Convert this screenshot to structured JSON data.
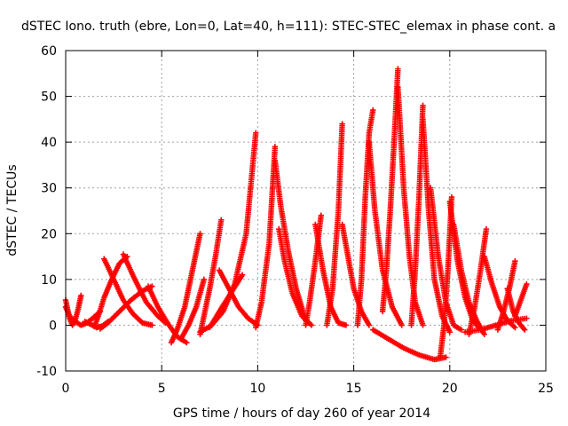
{
  "chart_data": {
    "type": "scatter",
    "title": "dSTEC Iono. truth (ebre, Lon=0, Lat=40, h=111): STEC-STEC_elemax in phase cont. a",
    "xlabel": "GPS time / hours of day 260 of year 2014",
    "ylabel": "dSTEC  / TECUs",
    "xlim": [
      0,
      25
    ],
    "ylim": [
      -10,
      60
    ],
    "xticks": [
      0,
      5,
      10,
      15,
      20,
      25
    ],
    "yticks": [
      -10,
      0,
      10,
      20,
      30,
      40,
      50,
      60
    ],
    "grid": true,
    "marker": "+",
    "color": "#ff0000",
    "series": [
      {
        "x": [
          0.0,
          0.1,
          0.2,
          0.35,
          0.5,
          0.65,
          0.8
        ],
        "y": [
          5.5,
          3.5,
          1.5,
          0.0,
          1.2,
          3.5,
          6.5
        ]
      },
      {
        "x": [
          0.0,
          0.2,
          0.5,
          0.8,
          1.1,
          1.4,
          1.8
        ],
        "y": [
          4.0,
          2.0,
          0.8,
          0.0,
          0.5,
          1.5,
          3.0
        ]
      },
      {
        "x": [
          1.0,
          1.3,
          1.6,
          1.9,
          2.2
        ],
        "y": [
          0.8,
          0.2,
          -0.5,
          -0.2,
          0.8
        ]
      },
      {
        "x": [
          1.5,
          1.7,
          2.0,
          2.4,
          2.8,
          3.2
        ],
        "y": [
          -0.3,
          2.0,
          6.0,
          10.0,
          13.5,
          15.0
        ]
      },
      {
        "x": [
          2.0,
          2.5,
          3.0,
          3.5,
          4.0,
          4.5
        ],
        "y": [
          14.5,
          10.0,
          5.5,
          2.5,
          0.5,
          0.0
        ]
      },
      {
        "x": [
          1.8,
          2.2,
          2.8,
          3.4,
          4.0,
          4.5
        ],
        "y": [
          -0.8,
          0.5,
          3.0,
          5.5,
          7.5,
          8.5
        ]
      },
      {
        "x": [
          3.0,
          3.6,
          4.2,
          4.8,
          5.2
        ],
        "y": [
          15.5,
          10.0,
          5.0,
          2.0,
          0.5
        ]
      },
      {
        "x": [
          4.3,
          4.8,
          5.3,
          5.8,
          6.3
        ],
        "y": [
          8.5,
          4.0,
          0.5,
          -2.5,
          -3.8
        ]
      },
      {
        "x": [
          5.5,
          5.8,
          6.2,
          6.6,
          7.0
        ],
        "y": [
          -3.8,
          -1.0,
          4.0,
          12.0,
          20.0
        ]
      },
      {
        "x": [
          6.0,
          6.4,
          6.8,
          7.2
        ],
        "y": [
          -3.0,
          0.0,
          4.0,
          10.0
        ]
      },
      {
        "x": [
          7.0,
          7.2,
          7.5,
          7.8,
          8.1
        ],
        "y": [
          -2.0,
          2.0,
          8.0,
          15.0,
          23.0
        ]
      },
      {
        "x": [
          7.0,
          7.6,
          8.2,
          8.8,
          9.4,
          9.9
        ],
        "y": [
          -1.5,
          0.0,
          3.0,
          9.0,
          20.0,
          42.0
        ]
      },
      {
        "x": [
          7.5,
          8.0,
          8.6,
          9.2
        ],
        "y": [
          -0.5,
          3.0,
          7.0,
          11.0
        ]
      },
      {
        "x": [
          8.0,
          8.5,
          9.0,
          9.5,
          10.0
        ],
        "y": [
          12.0,
          8.0,
          4.0,
          1.5,
          0.0
        ]
      },
      {
        "x": [
          9.9,
          10.2,
          10.6,
          10.9
        ],
        "y": [
          -0.5,
          5.0,
          18.0,
          39.0
        ]
      },
      {
        "x": [
          10.9,
          11.2,
          11.6,
          12.0,
          12.5
        ],
        "y": [
          36.0,
          26.0,
          16.0,
          8.0,
          1.0
        ]
      },
      {
        "x": [
          11.1,
          11.4,
          11.8,
          12.3,
          12.8
        ],
        "y": [
          21.0,
          14.0,
          7.0,
          2.0,
          0.0
        ]
      },
      {
        "x": [
          12.5,
          12.7,
          13.0,
          13.3
        ],
        "y": [
          0.0,
          5.0,
          14.0,
          24.0
        ]
      },
      {
        "x": [
          13.0,
          13.4,
          13.8,
          14.2,
          14.6
        ],
        "y": [
          22.0,
          12.0,
          4.0,
          0.5,
          0.0
        ]
      },
      {
        "x": [
          13.6,
          13.9,
          14.2,
          14.4
        ],
        "y": [
          0.0,
          8.0,
          25.0,
          44.0
        ]
      },
      {
        "x": [
          14.4,
          14.7,
          15.0,
          15.4,
          15.8
        ],
        "y": [
          22.0,
          15.0,
          8.0,
          3.0,
          0.0
        ]
      },
      {
        "x": [
          15.2,
          15.4,
          15.6,
          15.8,
          16.0
        ],
        "y": [
          0.0,
          10.0,
          28.0,
          42.0,
          47.0
        ]
      },
      {
        "x": [
          15.8,
          16.1,
          16.5,
          17.0,
          17.5
        ],
        "y": [
          40.0,
          25.0,
          12.0,
          4.0,
          0.0
        ]
      },
      {
        "x": [
          17.3,
          17.1,
          16.9,
          16.7,
          16.5
        ],
        "y": [
          56.0,
          40.0,
          25.0,
          12.0,
          3.0
        ]
      },
      {
        "x": [
          17.3,
          17.6,
          17.9,
          18.2,
          18.6
        ],
        "y": [
          52.0,
          30.0,
          15.0,
          5.0,
          0.0
        ]
      },
      {
        "x": [
          18.0,
          18.2,
          18.4,
          18.6
        ],
        "y": [
          0.0,
          12.0,
          28.0,
          48.0
        ]
      },
      {
        "x": [
          18.6,
          18.9,
          19.2,
          19.6,
          20.0
        ],
        "y": [
          45.0,
          25.0,
          10.0,
          2.0,
          -1.5
        ]
      },
      {
        "x": [
          19.0,
          19.4,
          19.8,
          20.2,
          20.6
        ],
        "y": [
          30.0,
          15.0,
          5.0,
          0.0,
          -1.0
        ]
      },
      {
        "x": [
          19.5,
          19.7,
          19.9,
          20.1
        ],
        "y": [
          -7.0,
          0.0,
          12.0,
          28.0
        ]
      },
      {
        "x": [
          20.0,
          20.4,
          20.8,
          21.2,
          21.6
        ],
        "y": [
          27.0,
          14.0,
          6.0,
          1.0,
          -1.0
        ]
      },
      {
        "x": [
          20.2,
          20.6,
          21.0,
          21.4,
          21.8
        ],
        "y": [
          22.0,
          12.0,
          5.0,
          1.0,
          -2.0
        ]
      },
      {
        "x": [
          21.0,
          21.3,
          21.6,
          21.9
        ],
        "y": [
          -2.0,
          4.0,
          12.0,
          21.0
        ]
      },
      {
        "x": [
          21.8,
          22.2,
          22.6,
          23.0,
          23.4
        ],
        "y": [
          15.0,
          9.0,
          4.0,
          1.0,
          -0.5
        ]
      },
      {
        "x": [
          22.5,
          22.8,
          23.1,
          23.4
        ],
        "y": [
          -1.0,
          3.0,
          8.0,
          14.0
        ]
      },
      {
        "x": [
          23.0,
          23.3,
          23.6,
          23.9
        ],
        "y": [
          8.0,
          3.0,
          0.5,
          -1.0
        ]
      },
      {
        "x": [
          23.4,
          23.7,
          24.0
        ],
        "y": [
          2.0,
          5.5,
          9.0
        ]
      },
      {
        "x": [
          16.0,
          16.8,
          17.6,
          18.4,
          19.2,
          19.8
        ],
        "y": [
          -1.0,
          -3.0,
          -5.0,
          -6.5,
          -7.5,
          -7.0
        ]
      },
      {
        "x": [
          20.8,
          21.6,
          22.4,
          23.2,
          24.0
        ],
        "y": [
          -1.5,
          -1.0,
          0.0,
          1.0,
          1.5
        ]
      }
    ]
  }
}
